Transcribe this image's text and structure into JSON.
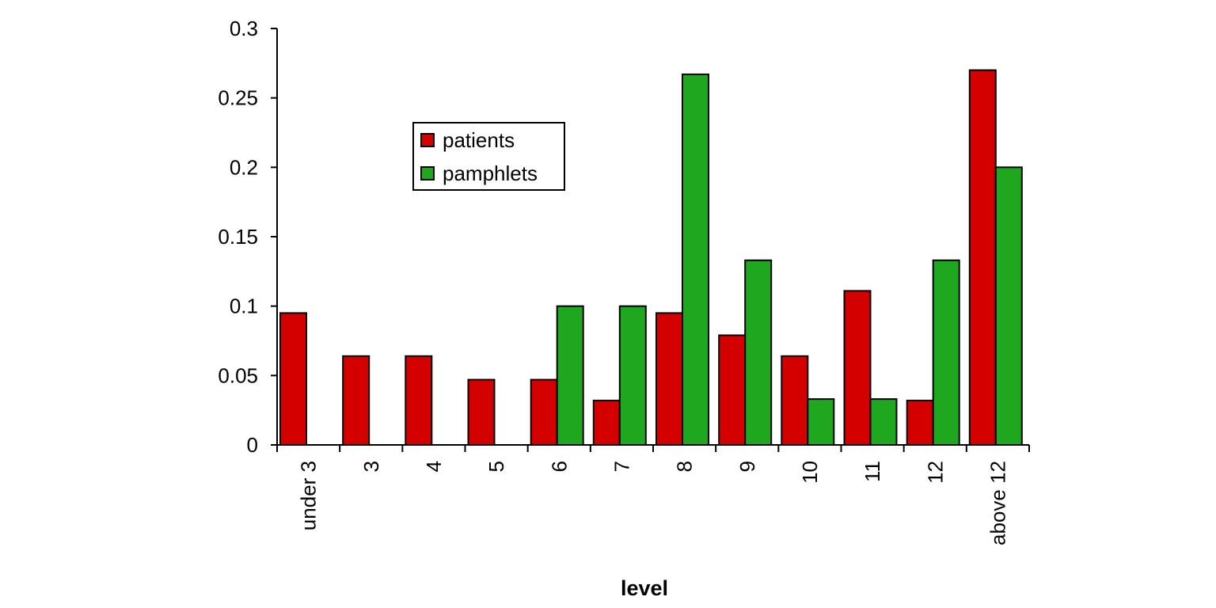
{
  "chart_data": {
    "type": "bar",
    "title": "",
    "xlabel": "level",
    "ylabel": "",
    "categories": [
      "under 3",
      "3",
      "4",
      "5",
      "6",
      "7",
      "8",
      "9",
      "10",
      "11",
      "12",
      "above 12"
    ],
    "series": [
      {
        "name": "patients",
        "color": "#d40000",
        "values": [
          0.095,
          0.064,
          0.064,
          0.047,
          0.047,
          0.032,
          0.095,
          0.079,
          0.064,
          0.111,
          0.032,
          0.27
        ]
      },
      {
        "name": "pamphlets",
        "color": "#1fa71f",
        "values": [
          0,
          0,
          0,
          0,
          0.1,
          0.1,
          0.267,
          0.133,
          0.033,
          0.033,
          0.133,
          0.2
        ]
      }
    ],
    "ylim": [
      0,
      0.3
    ],
    "yticks": [
      "0",
      "0.05",
      "0.1",
      "0.15",
      "0.2",
      "0.25",
      "0.3"
    ],
    "grid": false,
    "legend_position": "upper-left-inside"
  }
}
